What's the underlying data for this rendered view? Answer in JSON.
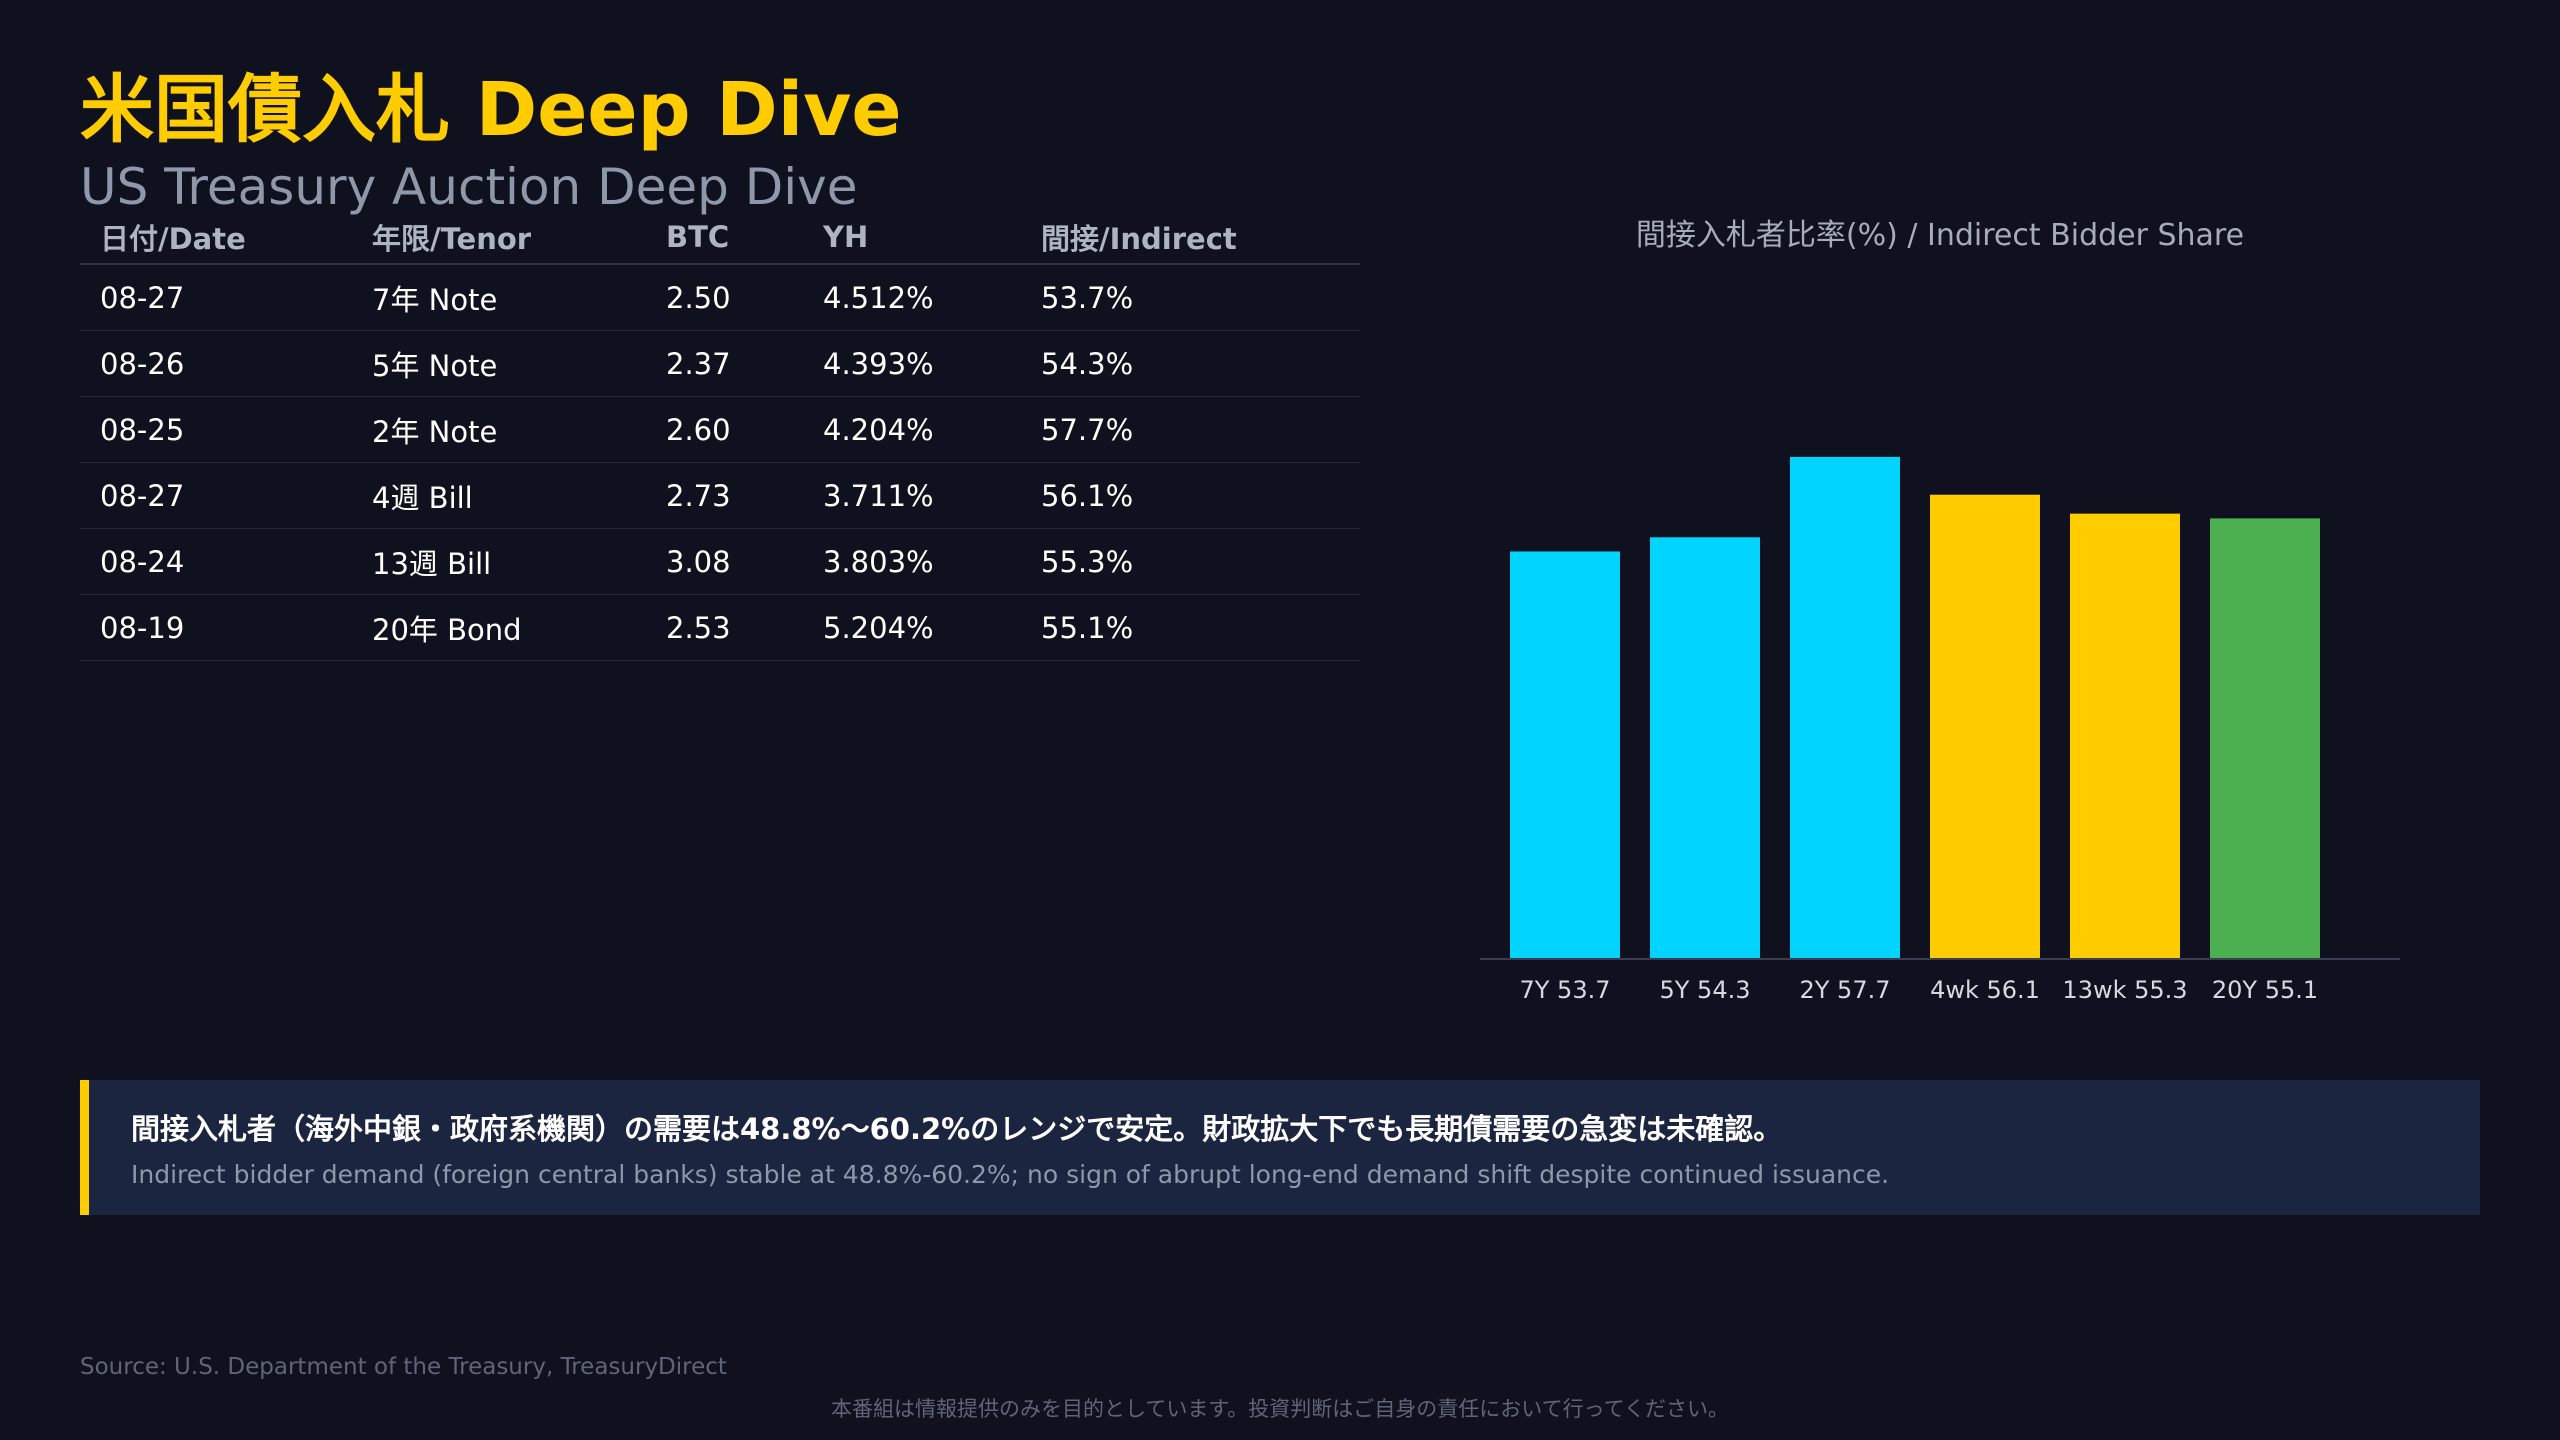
{
  "title": "米国債入札 Deep Dive",
  "subtitle": "US Treasury Auction Deep Dive",
  "table": {
    "headers": [
      "日付/Date",
      "年限/Tenor",
      "BTC",
      "YH",
      "間接/Indirect"
    ],
    "rows": [
      [
        "08-27",
        "7年 Note",
        "2.50",
        "4.512%",
        "53.7%"
      ],
      [
        "08-26",
        "5年 Note",
        "2.37",
        "4.393%",
        "54.3%"
      ],
      [
        "08-25",
        "2年 Note",
        "2.60",
        "4.204%",
        "57.7%"
      ],
      [
        "08-27",
        "4週 Bill",
        "2.73",
        "3.711%",
        "56.1%"
      ],
      [
        "08-24",
        "13週 Bill",
        "3.08",
        "3.803%",
        "55.3%"
      ],
      [
        "08-19",
        "20年 Bond",
        "2.53",
        "5.204%",
        "55.1%"
      ]
    ]
  },
  "chart_data": {
    "type": "bar",
    "title": "間接入札者比率(%) / Indirect Bidder Share",
    "categories": [
      "7Y",
      "5Y",
      "2Y",
      "4wk",
      "13wk",
      "20Y"
    ],
    "tick_labels": [
      "7Y 53.7",
      "5Y 54.3",
      "2Y 57.7",
      "4wk 56.1",
      "13wk 55.3",
      "20Y 55.1"
    ],
    "values": [
      53.7,
      54.3,
      57.7,
      56.1,
      55.3,
      55.1
    ],
    "colors": [
      "#00d4ff",
      "#00d4ff",
      "#00d4ff",
      "#ffcc00",
      "#ffcc00",
      "#4caf50"
    ],
    "ylim": [
      36.5,
      58.5
    ],
    "xlabel": "",
    "ylabel": "",
    "grid": false
  },
  "callout": {
    "jp": "間接入札者（海外中銀・政府系機関）の需要は48.8%〜60.2%のレンジで安定。財政拡大下でも長期債需要の急変は未確認。",
    "en": "Indirect bidder demand (foreign central banks) stable at 48.8%-60.2%; no sign of abrupt long-end demand shift despite continued issuance.",
    "accent": "#ffcc00"
  },
  "source": "Source: U.S. Department of the Treasury, TreasuryDirect",
  "disclaimer": "本番組は情報提供のみを目的としています。投資判断はご自身の責任において行ってください。"
}
